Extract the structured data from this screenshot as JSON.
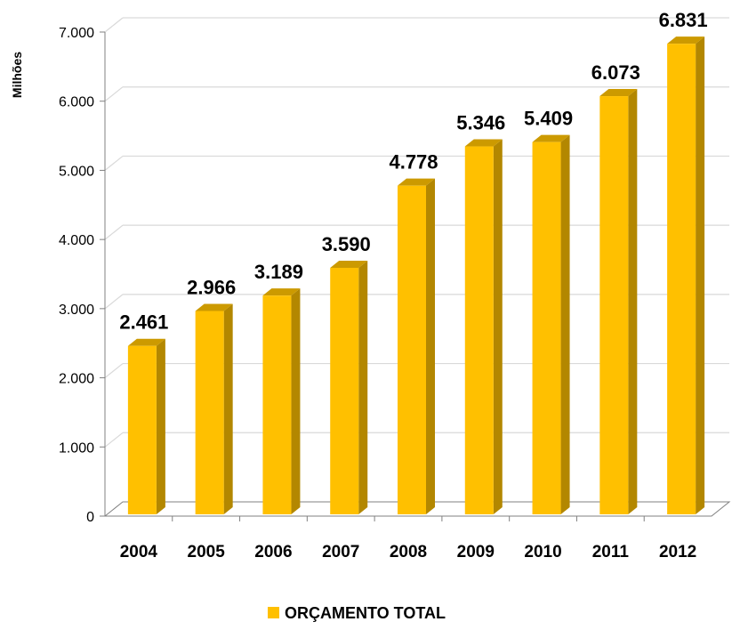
{
  "chart_data": {
    "type": "bar",
    "categories": [
      "2004",
      "2005",
      "2006",
      "2007",
      "2008",
      "2009",
      "2010",
      "2011",
      "2012"
    ],
    "series": [
      {
        "name": "ORÇAMENTO TOTAL",
        "values": [
          2461,
          2966,
          3189,
          3590,
          4778,
          5346,
          5409,
          6073,
          6831
        ],
        "labels": [
          "2.461",
          "2.966",
          "3.189",
          "3.590",
          "4.778",
          "5.346",
          "5.409",
          "6.073",
          "6.831"
        ],
        "color": "#FFC000"
      }
    ],
    "ylabel": "Milhões",
    "ylim": [
      0,
      7000
    ],
    "yticks": [
      0,
      1000,
      2000,
      3000,
      4000,
      5000,
      6000,
      7000
    ],
    "ytick_labels": [
      "0",
      "1.000",
      "2.000",
      "3.000",
      "4.000",
      "5.000",
      "6.000",
      "7.000"
    ],
    "grid": true,
    "legend_position": "bottom",
    "style": "3d-column"
  },
  "colors": {
    "bar_front": "#FFC000",
    "bar_side": "#B38700",
    "bar_top": "#CC9A00",
    "grid": "#D9D9D9",
    "axis": "#808080"
  }
}
